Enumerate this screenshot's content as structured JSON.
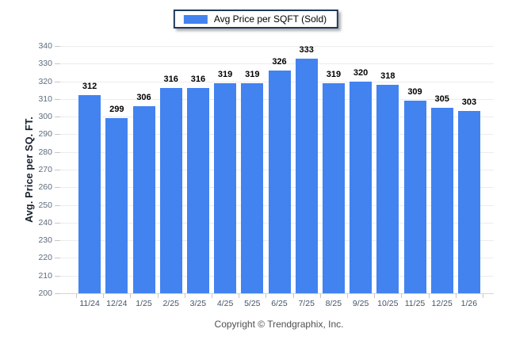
{
  "legend": {
    "label": "Avg Price per SQFT (Sold)"
  },
  "footer": {
    "copyright": "Copyright © Trendgraphix, Inc."
  },
  "chart_data": {
    "type": "bar",
    "title": "",
    "series_name": "Avg Price per SQFT (Sold)",
    "categories": [
      "11/24",
      "12/24",
      "1/25",
      "2/25",
      "3/25",
      "4/25",
      "5/25",
      "6/25",
      "7/25",
      "8/25",
      "9/25",
      "10/25",
      "11/25",
      "12/25",
      "1/26"
    ],
    "values": [
      312,
      299,
      306,
      316,
      316,
      319,
      319,
      326,
      333,
      319,
      320,
      318,
      309,
      305,
      303
    ],
    "xlabel": "",
    "ylabel": "Avg. Price per SQ. FT.",
    "ylim": [
      200,
      340
    ],
    "ytick_step": 10,
    "grid": true,
    "legend_position": "top-center",
    "value_labels": true,
    "colors": {
      "bar": "#4283f0",
      "grid": "#ececec",
      "baseline": "#d5d5d5",
      "tick": "#c6c6c6",
      "y_tick_label": "#5d6b7d",
      "x_tick_label": "#44536a",
      "value_label": "#000000",
      "axis_title": "#16202c",
      "legend_border": "#1d3a5a",
      "footer_text": "#4f4f4f"
    }
  }
}
